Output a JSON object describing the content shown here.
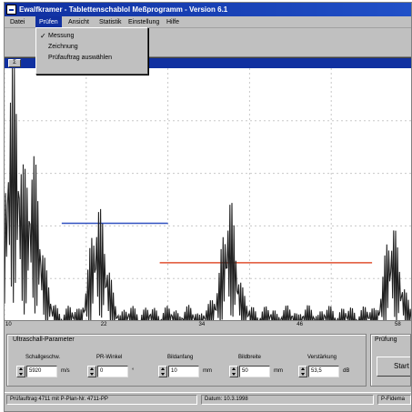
{
  "window": {
    "title": "Ewalfkramer - Tablettenschablol Meßprogramm - Version 6.1"
  },
  "menu": {
    "items": [
      {
        "key": "datei",
        "label": "Datei"
      },
      {
        "key": "pruefen",
        "label": "Prüfen"
      },
      {
        "key": "ansicht",
        "label": "Ansicht"
      },
      {
        "key": "statistik",
        "label": "Statistik"
      },
      {
        "key": "einstellung",
        "label": "Einstellung"
      },
      {
        "key": "hilfe",
        "label": "Hilfe"
      }
    ],
    "active": "pruefen"
  },
  "dropdown": {
    "items": [
      {
        "label": "Messung",
        "checked": true
      },
      {
        "label": "Zeichnung",
        "checked": false
      },
      {
        "label": "Prüfauftrag auswählen",
        "checked": false
      }
    ]
  },
  "chart_panel": {
    "system_box": "Σ"
  },
  "chart_data": {
    "type": "line",
    "title": "",
    "xlabel": "",
    "ylabel": "",
    "x_ticks": [
      "10",
      "22",
      "34",
      "46",
      "58"
    ],
    "xlim": [
      10,
      60
    ],
    "ylim": [
      0,
      100
    ],
    "grid": true,
    "series": [
      {
        "peaks": [
          {
            "x": 11.0,
            "height": 95,
            "width": 1.2
          },
          {
            "x": 13.5,
            "height": 58,
            "width": 1.4
          },
          {
            "x": 21.5,
            "height": 42,
            "width": 1.3
          },
          {
            "x": 37.5,
            "height": 42,
            "width": 1.3
          },
          {
            "x": 57.5,
            "height": 35,
            "width": 1.2
          }
        ],
        "baseline": 10,
        "color": "#202020"
      }
    ],
    "markers": [
      {
        "x_start": 17,
        "x_end": 30,
        "y": 41,
        "color": "#3050c0"
      },
      {
        "x_start": 29,
        "x_end": 55,
        "y": 26,
        "color": "#e05030"
      }
    ],
    "grid_color": "#c8c8c8"
  },
  "parameters": {
    "title": "Ultraschall-Parameter",
    "items": [
      {
        "label": "Schallgeschw.",
        "value": "5920",
        "unit": "m/s"
      },
      {
        "label": "PR-Winkel",
        "value": "0",
        "unit": "°"
      },
      {
        "label": "Bildanfang",
        "value": "10",
        "unit": "mm"
      },
      {
        "label": "Bildbreite",
        "value": "50",
        "unit": "mm"
      },
      {
        "label": "Verstärkung",
        "value": "53,5",
        "unit": "dB"
      }
    ]
  },
  "pruefung": {
    "title": "Prüfung",
    "start_label": "Start"
  },
  "statusbar": {
    "order": "Prüfauftrag 4711 mit P-Plan-Nr. 4711-PP",
    "date": "Datum: 10.3.1998",
    "extra": "P-Fidema"
  }
}
